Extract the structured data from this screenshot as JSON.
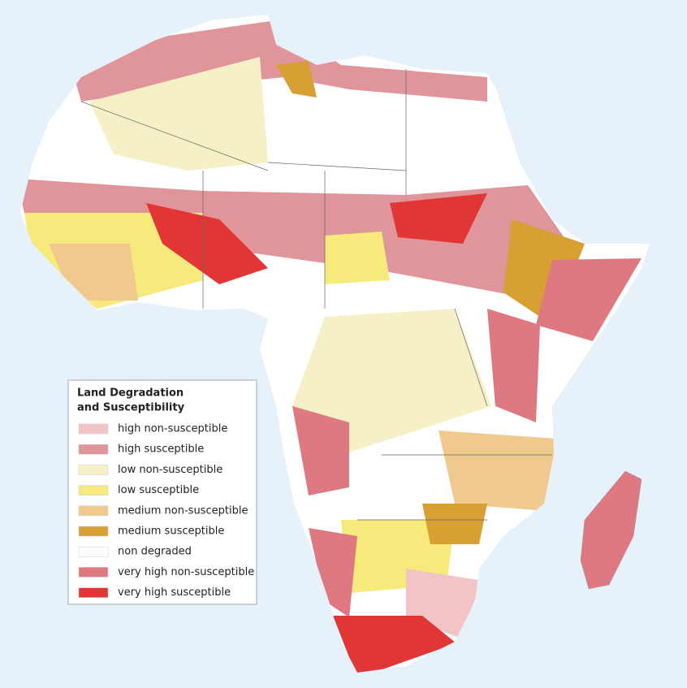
{
  "legend": {
    "title_lines": [
      "Land Degradation",
      "and Susceptibility"
    ],
    "items": [
      {
        "label": "high non-susceptible",
        "color": "#f2c4c6"
      },
      {
        "label": "high susceptible",
        "color": "#e0959b"
      },
      {
        "label": "low non-susceptible",
        "color": "#f5f0c6"
      },
      {
        "label": "low susceptible",
        "color": "#f6ea7c"
      },
      {
        "label": "medium non-susceptible",
        "color": "#f0c98e"
      },
      {
        "label": "medium susceptible",
        "color": "#d89f32"
      },
      {
        "label": "non degraded",
        "color": "#ffffff"
      },
      {
        "label": "very high non-susceptible",
        "color": "#df7981"
      },
      {
        "label": "very high susceptible",
        "color": "#e03636"
      }
    ]
  }
}
